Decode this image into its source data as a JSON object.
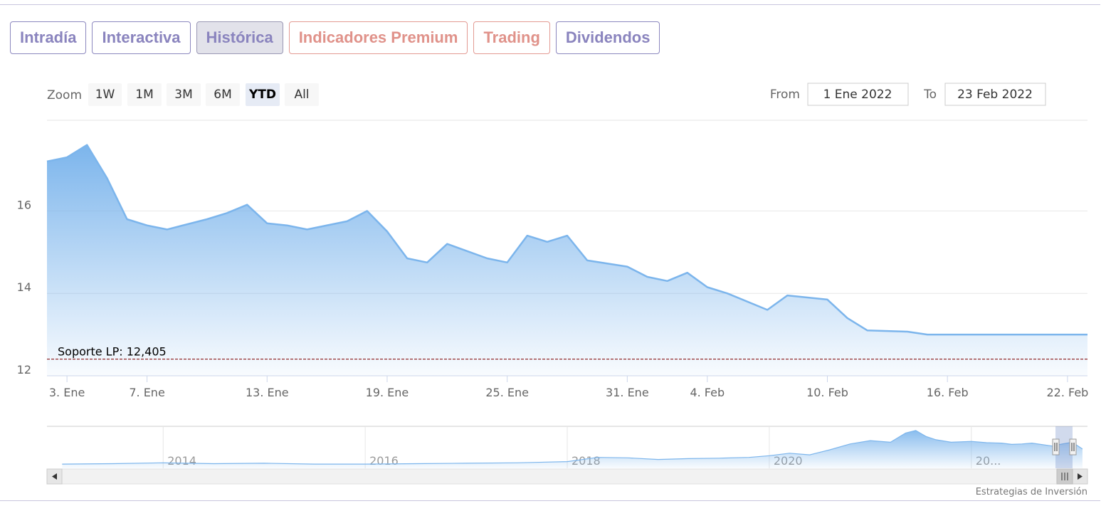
{
  "tabs": [
    {
      "label": "Intradía",
      "style": "violet",
      "active": false
    },
    {
      "label": "Interactiva",
      "style": "violet",
      "active": false
    },
    {
      "label": "Histórica",
      "style": "violet",
      "active": true
    },
    {
      "label": "Indicadores Premium",
      "style": "salmon",
      "active": false
    },
    {
      "label": "Trading",
      "style": "salmon",
      "active": false
    },
    {
      "label": "Dividendos",
      "style": "violet",
      "active": false
    }
  ],
  "zoom": {
    "label": "Zoom",
    "buttons": [
      "1W",
      "1M",
      "3M",
      "6M",
      "YTD",
      "All"
    ],
    "selected": "YTD"
  },
  "range": {
    "from_label": "From",
    "from_value": "1 Ene 2022",
    "to_label": "To",
    "to_value": "23 Feb 2022"
  },
  "credit": "Estrategias de Inversión",
  "colors": {
    "series": "#7cb5ec",
    "support": "#8b1a1a",
    "tab_violet": "#8a84be",
    "tab_salmon": "#e0928a"
  },
  "chart_data": {
    "type": "area",
    "title": "",
    "xlabel": "",
    "ylabel": "",
    "ylim": [
      12,
      18.2
    ],
    "yticks": [
      12,
      14,
      16
    ],
    "xticks": [
      {
        "date": "2022-01-03",
        "label": "3. Ene"
      },
      {
        "date": "2022-01-07",
        "label": "7. Ene"
      },
      {
        "date": "2022-01-13",
        "label": "13. Ene"
      },
      {
        "date": "2022-01-19",
        "label": "19. Ene"
      },
      {
        "date": "2022-01-25",
        "label": "25. Ene"
      },
      {
        "date": "2022-01-31",
        "label": "31. Ene"
      },
      {
        "date": "2022-02-04",
        "label": "4. Feb"
      },
      {
        "date": "2022-02-10",
        "label": "10. Feb"
      },
      {
        "date": "2022-02-16",
        "label": "16. Feb"
      },
      {
        "date": "2022-02-22",
        "label": "22. Feb"
      }
    ],
    "xrange": [
      "2022-01-02",
      "2022-02-23"
    ],
    "series": [
      {
        "x": [
          "2022-01-02",
          "2022-01-03",
          "2022-01-04",
          "2022-01-05",
          "2022-01-06",
          "2022-01-07",
          "2022-01-08",
          "2022-01-10",
          "2022-01-11",
          "2022-01-12",
          "2022-01-13",
          "2022-01-14",
          "2022-01-15",
          "2022-01-17",
          "2022-01-18",
          "2022-01-19",
          "2022-01-20",
          "2022-01-21",
          "2022-01-22",
          "2022-01-24",
          "2022-01-25",
          "2022-01-26",
          "2022-01-27",
          "2022-01-28",
          "2022-01-29",
          "2022-01-31",
          "2022-02-01",
          "2022-02-02",
          "2022-02-03",
          "2022-02-04",
          "2022-02-05",
          "2022-02-07",
          "2022-02-08",
          "2022-02-09",
          "2022-02-10",
          "2022-02-11",
          "2022-02-12",
          "2022-02-14",
          "2022-02-15",
          "2022-02-16",
          "2022-02-17",
          "2022-02-18",
          "2022-02-19",
          "2022-02-21",
          "2022-02-22",
          "2022-02-23"
        ],
        "values": [
          17.2,
          17.3,
          17.6,
          16.8,
          15.8,
          15.65,
          15.55,
          15.8,
          15.95,
          16.15,
          15.7,
          15.65,
          15.55,
          15.75,
          16.0,
          15.5,
          14.85,
          14.75,
          15.2,
          14.85,
          14.75,
          15.4,
          15.25,
          15.4,
          14.8,
          14.65,
          14.4,
          14.3,
          14.5,
          14.15,
          14.0,
          13.6,
          13.95,
          13.9,
          13.85,
          13.4,
          13.1,
          13.07,
          13.0,
          13.0,
          13.0,
          13.0,
          13.0,
          13.0,
          13.0,
          13.0
        ]
      }
    ],
    "plot_lines": [
      {
        "label": "Soporte LP: 12,405",
        "value": 12.405
      }
    ],
    "navigator": {
      "years": [
        "2014",
        "2016",
        "2018",
        "2020",
        "20..."
      ],
      "x": [
        2013.0,
        2013.5,
        2014.0,
        2014.5,
        2015.0,
        2015.5,
        2016.0,
        2016.5,
        2017.0,
        2017.5,
        2018.0,
        2018.3,
        2018.6,
        2018.9,
        2019.2,
        2019.5,
        2019.8,
        2020.0,
        2020.2,
        2020.4,
        2020.6,
        2020.8,
        2021.0,
        2021.2,
        2021.35,
        2021.45,
        2021.55,
        2021.65,
        2021.8,
        2022.0,
        2022.15,
        2022.3,
        2022.4,
        2022.5,
        2022.6,
        2022.8,
        2022.9,
        2023.0,
        2023.1
      ],
      "values": [
        1.0,
        1.1,
        1.3,
        1.1,
        1.2,
        1.0,
        1.0,
        1.1,
        1.2,
        1.3,
        1.6,
        2.6,
        2.5,
        2.1,
        2.3,
        2.4,
        2.6,
        3.0,
        3.6,
        3.2,
        4.4,
        5.8,
        6.6,
        6.2,
        8.4,
        9.0,
        7.6,
        6.8,
        6.2,
        6.4,
        6.1,
        6.0,
        5.7,
        5.8,
        6.0,
        5.3,
        5.8,
        6.2,
        4.6
      ]
    }
  }
}
